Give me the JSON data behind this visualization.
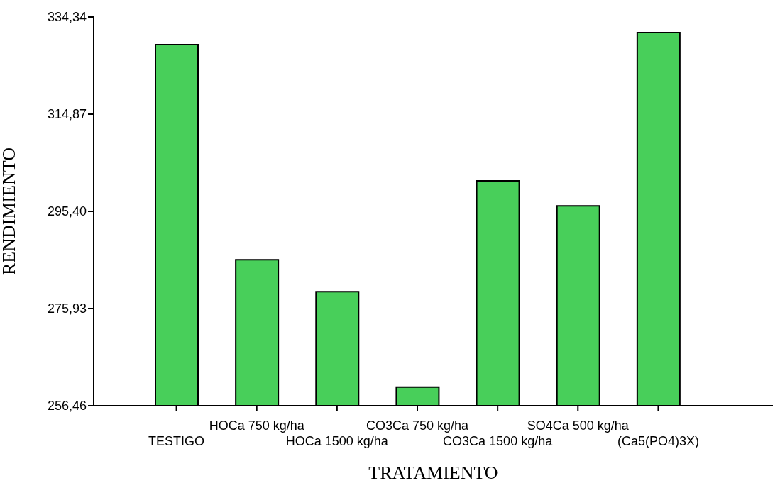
{
  "chart_data": {
    "type": "bar",
    "xlabel": "TRATAMIENTO",
    "ylabel": "RENDIMIENTO",
    "categories": [
      "TESTIGO",
      "HOCa 750 kg/ha",
      "HOCa 1500 kg/ha",
      "CO3Ca 750 kg/ha",
      "CO3Ca 1500 kg/ha",
      "SO4Ca 500 kg/ha",
      "(Ca5(PO4)3X)"
    ],
    "values": [
      328.8,
      285.7,
      279.3,
      260.2,
      301.5,
      296.5,
      331.2
    ],
    "color": "#48cf5a",
    "ylim": [
      256.46,
      334.34
    ],
    "yticks": [
      {
        "value": 256.46,
        "label": "256,46"
      },
      {
        "value": 275.93,
        "label": "275,93"
      },
      {
        "value": 295.4,
        "label": "295,40"
      },
      {
        "value": 314.87,
        "label": "314,87"
      },
      {
        "value": 334.34,
        "label": "334,34"
      }
    ],
    "grid": false,
    "legend": false
  }
}
